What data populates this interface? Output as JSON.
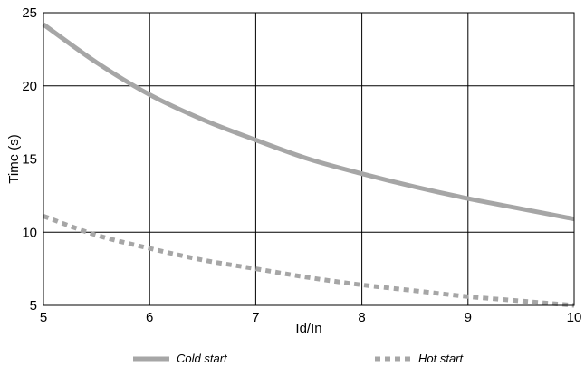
{
  "chart_data": {
    "type": "line",
    "xlabel": "Id/In",
    "ylabel": "Time (s)",
    "xlim": [
      5,
      10
    ],
    "ylim": [
      5,
      25
    ],
    "x_ticks": [
      5,
      6,
      7,
      8,
      9,
      10
    ],
    "y_ticks": [
      5,
      10,
      15,
      20,
      25
    ],
    "grid": true,
    "legend_position": "bottom",
    "series": [
      {
        "name": "Cold start",
        "style": "solid",
        "color": "#a6a6a6",
        "x": [
          5,
          5.5,
          6,
          6.5,
          7,
          7.5,
          8,
          8.5,
          9,
          9.5,
          10
        ],
        "y": [
          24.2,
          21.6,
          19.4,
          17.7,
          16.3,
          15.0,
          14.0,
          13.1,
          12.3,
          11.6,
          10.9
        ]
      },
      {
        "name": "Hot start",
        "style": "dotted",
        "color": "#a6a6a6",
        "x": [
          5,
          5.5,
          6,
          6.5,
          7,
          7.5,
          8,
          8.5,
          9,
          9.5,
          10
        ],
        "y": [
          11.1,
          9.8,
          8.9,
          8.1,
          7.5,
          6.9,
          6.4,
          6.0,
          5.6,
          5.3,
          5.0
        ]
      }
    ]
  }
}
